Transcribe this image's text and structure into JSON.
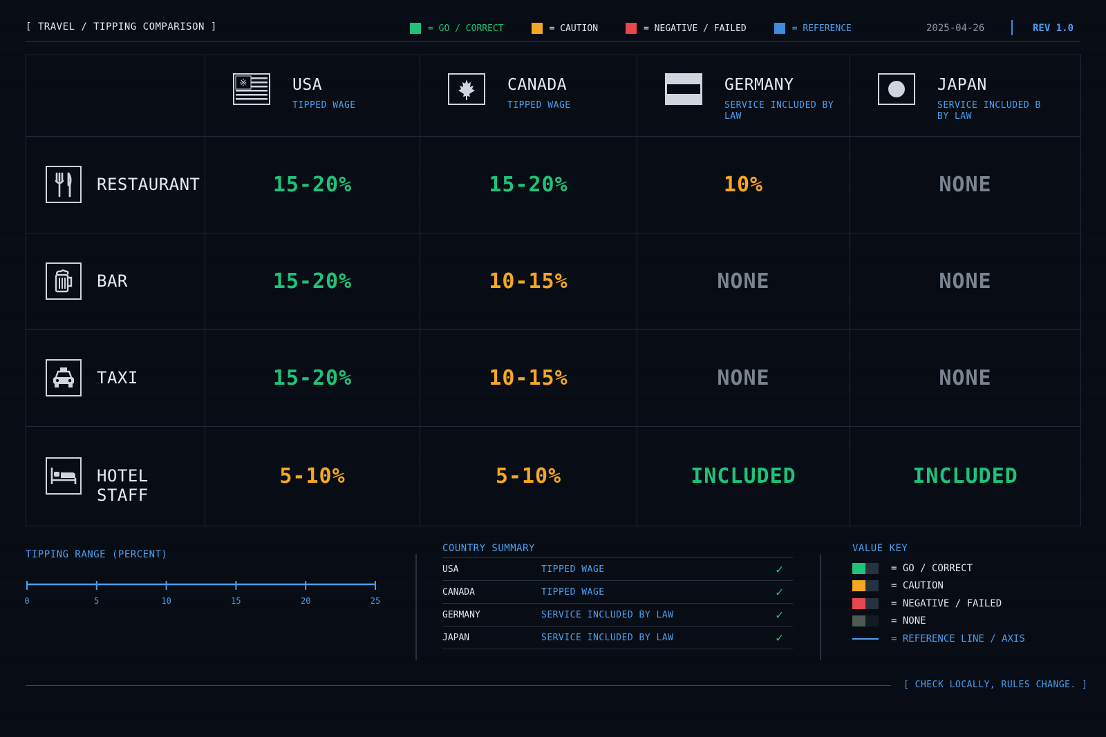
{
  "header": {
    "title": "[ TRAVEL / TIPPING COMPARISON ]",
    "date": "2025-04-26",
    "rev": "REV 1.0",
    "legend": [
      {
        "label": "= GO / CORRECT",
        "color": "#1ec27a"
      },
      {
        "label": "= CAUTION",
        "color": "#f5a623"
      },
      {
        "label": "= NEGATIVE / FAILED",
        "color": "#e5484d"
      },
      {
        "label": "= REFERENCE",
        "color": "#3d8ce0"
      }
    ]
  },
  "chart_data": {
    "type": "table",
    "columns": [
      {
        "name": "USA",
        "sub": "TIPPED WAGE",
        "flag": "usa-flag-icon"
      },
      {
        "name": "CANADA",
        "sub": "TIPPED WAGE",
        "flag": "canada-flag-icon"
      },
      {
        "name": "GERMANY",
        "sub": "SERVICE INCLUDED BY LAW",
        "flag": "germany-flag-icon"
      },
      {
        "name": "JAPAN",
        "sub": "SERVICE INCLUDED B BY LAW",
        "flag": "japan-flag-icon"
      }
    ],
    "rows": [
      {
        "category": "RESTAURANT",
        "icon": "fork-knife-icon",
        "values": [
          "15-20%",
          "15-20%",
          "10%",
          "NONE"
        ],
        "status": [
          "go",
          "go",
          "caution",
          "none"
        ]
      },
      {
        "category": "BAR",
        "icon": "beer-mug-icon",
        "values": [
          "15-20%",
          "10-15%",
          "NONE",
          "NONE"
        ],
        "status": [
          "go",
          "caution",
          "none",
          "none"
        ]
      },
      {
        "category": "TAXI",
        "icon": "taxi-icon",
        "values": [
          "15-20%",
          "10-15%",
          "NONE",
          "NONE"
        ],
        "status": [
          "go",
          "caution",
          "none",
          "none"
        ]
      },
      {
        "category": "HOTEL STAFF",
        "icon": "bed-icon",
        "values": [
          "5-10%",
          "5-10%",
          "INCLUDED",
          "INCLUDED"
        ],
        "status": [
          "caution",
          "caution",
          "go",
          "go"
        ]
      }
    ]
  },
  "range": {
    "title": "TIPPING RANGE (PERCENT)",
    "min": 0,
    "max": 25,
    "ticks": [
      "0",
      "5",
      "10",
      "15",
      "20",
      "25"
    ]
  },
  "summary": {
    "title": "COUNTRY SUMMARY",
    "rows": [
      {
        "country": "USA",
        "status": "TIPPED WAGE"
      },
      {
        "country": "CANADA",
        "status": "TIPPED WAGE"
      },
      {
        "country": "GERMANY",
        "status": "SERVICE INCLUDED BY LAW"
      },
      {
        "country": "JAPAN",
        "status": "SERVICE INCLUDED BY LAW"
      }
    ],
    "check": "✓"
  },
  "key": {
    "title": "VALUE KEY",
    "items": [
      {
        "label": "= GO / CORRECT",
        "color": "#1ec27a"
      },
      {
        "label": "= CAUTION",
        "color": "#f5a623"
      },
      {
        "label": "= NEGATIVE / FAILED",
        "color": "#e5484d"
      },
      {
        "label": "= NONE",
        "color": "#4e5a55"
      }
    ],
    "ref_label": "= REFERENCE LINE / AXIS"
  },
  "footer": {
    "note": "[ CHECK LOCALLY, RULES CHANGE. ]"
  }
}
